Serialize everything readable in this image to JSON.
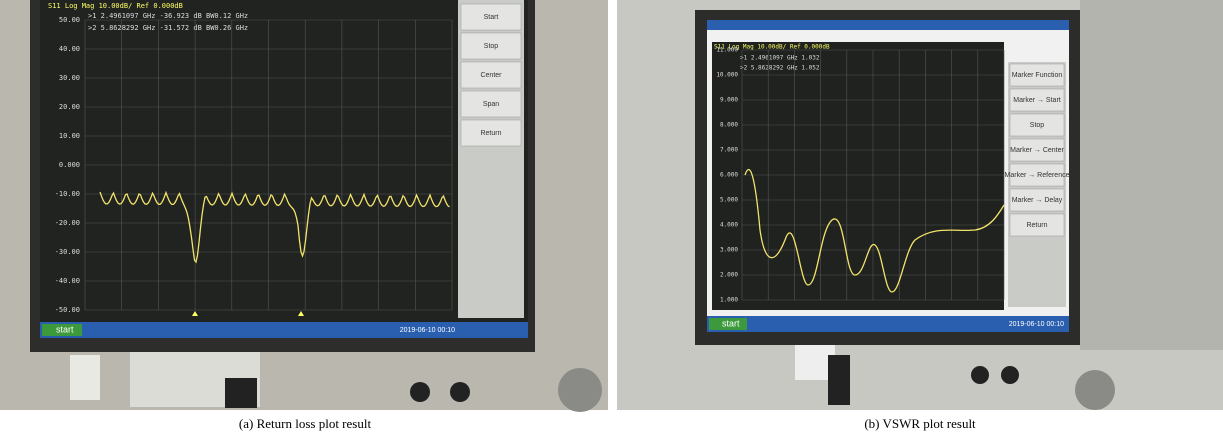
{
  "panels": [
    {
      "caption": "(a) Return loss plot result",
      "trace_label": "S11 Log Mag 10.00dB/ Ref 0.000dB",
      "markers": [
        ">1  2.4961097 GHz  -36.923 dB   BW0.12 GHz",
        ">2  5.8628292 GHz  -31.572 dB   BW0.26 GHz"
      ],
      "y_labels": [
        "50.00",
        "40.00",
        "30.00",
        "20.00",
        "10.00",
        "0.000",
        "-10.00",
        "-20.00",
        "-30.00",
        "-40.00",
        "-50.00"
      ],
      "softkeys": [
        "Start",
        "Stop",
        "Center",
        "Span",
        "Return"
      ],
      "taskbar": "start",
      "clock": "2019-06-10 00:10"
    },
    {
      "caption": "(b) VSWR plot result",
      "trace_label": "S11 Log Mag 10.00dB/ Ref 0.000dB",
      "markers": [
        ">1  2.4961097 GHz  1.032",
        ">2  5.8628292 GHz  1.052"
      ],
      "y_labels": [
        "11.000",
        "10.000",
        "9.000",
        "8.000",
        "7.000",
        "6.000",
        "5.000",
        "4.000",
        "3.000",
        "2.000",
        "1.000"
      ],
      "softkeys": [
        "Marker Function",
        "Marker → Start",
        "Stop",
        "Marker → Center",
        "Marker → Reference",
        "Marker → Delay",
        "Return"
      ],
      "taskbar": "start",
      "clock": "2019-06-10 00:10"
    }
  ]
}
